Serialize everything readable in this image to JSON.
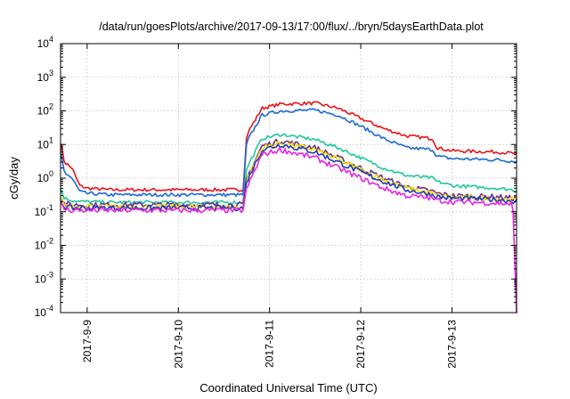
{
  "chart_data": {
    "type": "line",
    "title": "/data/run/goesPlots/archive/2017-09-13/17:00/flux/../bryn/5daysEarthData.plot",
    "xlabel": "Coordinated Universal Time (UTC)",
    "ylabel": "cGy/day",
    "yscale": "log",
    "xlim": [
      "2017-09-08 17:00",
      "2017-09-13 17:00"
    ],
    "ylim": [
      0.0001,
      10000
    ],
    "grid": true,
    "x_tick_labels": [
      "2017-9-9",
      "2017-9-10",
      "2017-9-11",
      "2017-9-12",
      "2017-9-13"
    ],
    "x_ticks": [
      "2017-09-09 00:00",
      "2017-09-10 00:00",
      "2017-09-11 00:00",
      "2017-09-12 00:00",
      "2017-09-13 00:00"
    ],
    "y_tick_labels": [
      {
        "base": "10",
        "exp": "-4"
      },
      {
        "base": "10",
        "exp": "-3"
      },
      {
        "base": "10",
        "exp": "-2"
      },
      {
        "base": "10",
        "exp": "-1"
      },
      {
        "base": "10",
        "exp": "0"
      },
      {
        "base": "10",
        "exp": "1"
      },
      {
        "base": "10",
        "exp": "2"
      },
      {
        "base": "10",
        "exp": "3"
      },
      {
        "base": "10",
        "exp": "4"
      }
    ],
    "y_ticks": [
      0.0001,
      0.001,
      0.01,
      0.1,
      1,
      10,
      100,
      1000,
      10000
    ],
    "x": [
      "2017-09-08 17:00",
      "2017-09-08 18:00",
      "2017-09-08 20:00",
      "2017-09-08 22:00",
      "2017-09-09 00:00",
      "2017-09-09 06:00",
      "2017-09-09 12:00",
      "2017-09-10 00:00",
      "2017-09-10 12:00",
      "2017-09-10 16:00",
      "2017-09-10 17:00",
      "2017-09-10 18:00",
      "2017-09-10 22:00",
      "2017-09-11 03:00",
      "2017-09-11 12:00",
      "2017-09-11 18:00",
      "2017-09-12 00:00",
      "2017-09-12 06:00",
      "2017-09-12 12:00",
      "2017-09-12 19:00",
      "2017-09-12 20:00",
      "2017-09-13 00:00",
      "2017-09-13 12:00",
      "2017-09-13 16:00",
      "2017-09-13 17:00"
    ],
    "series": [
      {
        "color": "#e8141a",
        "values": [
          12,
          3,
          2,
          0.6,
          0.5,
          0.45,
          0.45,
          0.45,
          0.45,
          0.45,
          0.45,
          20,
          120,
          160,
          170,
          120,
          60,
          30,
          18,
          15,
          8,
          6.5,
          6,
          5.5,
          5
        ]
      },
      {
        "color": "#1c6ad6",
        "values": [
          6,
          1.5,
          1,
          0.4,
          0.35,
          0.32,
          0.32,
          0.32,
          0.32,
          0.32,
          0.32,
          12,
          75,
          100,
          105,
          75,
          35,
          15,
          8,
          7,
          4.5,
          3.8,
          3.5,
          3.2,
          3
        ]
      },
      {
        "color": "#1fc79c",
        "values": [
          0.5,
          0.25,
          0.22,
          0.2,
          0.2,
          0.19,
          0.19,
          0.19,
          0.19,
          0.19,
          0.19,
          2,
          15,
          20,
          14,
          8,
          4,
          2,
          1.2,
          1,
          0.8,
          0.6,
          0.5,
          0.45,
          0.4
        ]
      },
      {
        "color": "#6b2f91",
        "values": [
          0.3,
          0.17,
          0.16,
          0.16,
          0.16,
          0.16,
          0.16,
          0.16,
          0.16,
          0.16,
          0.16,
          1,
          9,
          13,
          8,
          4,
          2,
          1,
          0.55,
          0.4,
          0.35,
          0.3,
          0.28,
          0.25,
          0.25
        ]
      },
      {
        "color": "#f2e00a",
        "values": [
          0.25,
          0.15,
          0.14,
          0.14,
          0.14,
          0.14,
          0.14,
          0.14,
          0.14,
          0.14,
          0.14,
          0.9,
          8,
          11,
          7,
          3.5,
          1.8,
          0.9,
          0.5,
          0.35,
          0.3,
          0.27,
          0.25,
          0.23,
          0.22
        ]
      },
      {
        "color": "#2138c4",
        "values": [
          0.22,
          0.14,
          0.13,
          0.13,
          0.13,
          0.13,
          0.13,
          0.13,
          0.13,
          0.13,
          0.13,
          0.8,
          7,
          10,
          6,
          3,
          1.5,
          0.8,
          0.45,
          0.32,
          0.28,
          0.25,
          0.23,
          0.21,
          0.2
        ]
      },
      {
        "color": "#ea22e0",
        "values": [
          0.18,
          0.12,
          0.11,
          0.11,
          0.11,
          0.11,
          0.11,
          0.11,
          0.11,
          0.11,
          0.11,
          0.5,
          5,
          7,
          4,
          2,
          1,
          0.5,
          0.3,
          0.25,
          0.22,
          0.2,
          0.18,
          0.17,
          0.0001
        ]
      }
    ]
  }
}
